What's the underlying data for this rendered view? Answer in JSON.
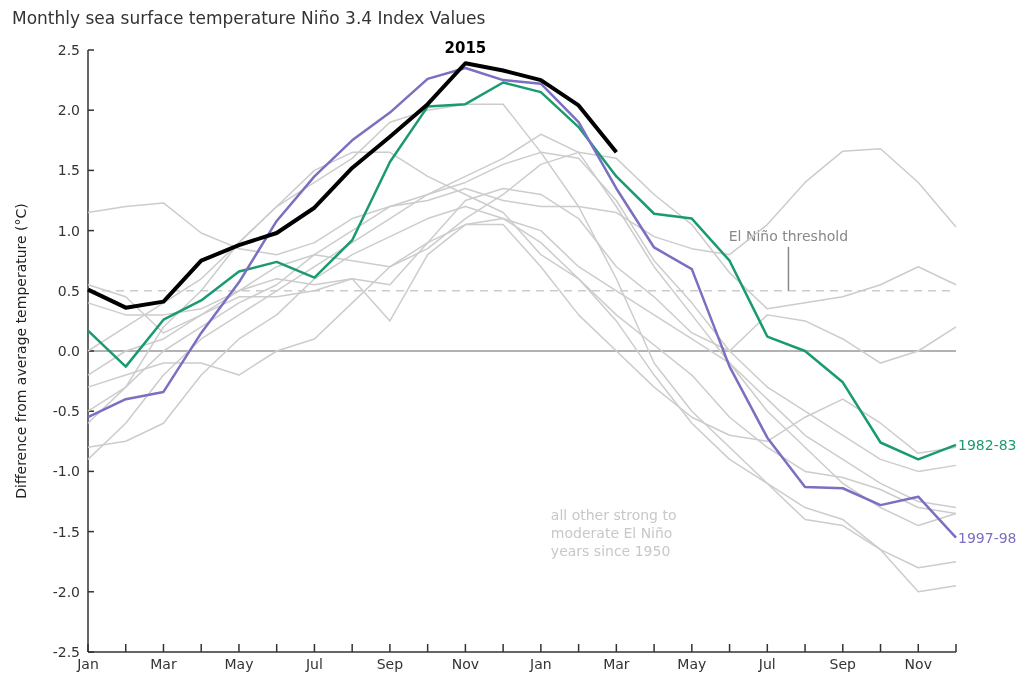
{
  "chart_data": {
    "type": "line",
    "title": "Monthly sea surface temperature Niño 3.4 Index Values",
    "ylabel": "Difference from average temperature (°C)",
    "categories": [
      "Jan",
      null,
      "Mar",
      null,
      "May",
      null,
      "Jul",
      null,
      "Sep",
      null,
      "Nov",
      null,
      "Jan",
      null,
      "Mar",
      null,
      "May",
      null,
      "Jul",
      null,
      "Sep",
      null,
      "Nov",
      null
    ],
    "ylim": [
      -2.5,
      2.5
    ],
    "yticks": [
      {
        "value": -2.5,
        "label": "-2.5"
      },
      {
        "value": -2,
        "label": "-2.0"
      },
      {
        "value": -1.5,
        "label": "-1.5"
      },
      {
        "value": -1,
        "label": "-1.0"
      },
      {
        "value": -0.5,
        "label": "-0.5"
      },
      {
        "value": 0,
        "label": "0.0"
      },
      {
        "value": 0.5,
        "label": "0.5"
      },
      {
        "value": 1,
        "label": "1.0"
      },
      {
        "value": 1.5,
        "label": "1.5"
      },
      {
        "value": 2,
        "label": "2.0"
      },
      {
        "value": 2.5,
        "label": "2.5"
      }
    ],
    "series": [
      {
        "color": "#cccccc",
        "values": [
          1.15,
          1.2,
          1.23,
          0.98,
          0.85,
          0.8,
          0.9,
          1.1,
          1.2,
          1.25,
          1.35,
          1.25,
          1.2,
          1.2,
          1.15,
          0.95,
          0.85,
          0.8,
          1.05,
          1.4,
          1.66,
          1.68,
          1.4,
          1.03
        ]
      },
      {
        "color": "#cccccc",
        "values": [
          -0.6,
          -0.3,
          0.2,
          0.5,
          0.9,
          1.2,
          1.4,
          1.6,
          1.9,
          2.0,
          2.05,
          2.05,
          1.65,
          1.2,
          0.6,
          -0.1,
          -0.5,
          -0.8,
          -1.1,
          -1.4,
          -1.45,
          -1.65,
          -2.0,
          -1.95
        ]
      },
      {
        "color": "#cccccc",
        "values": [
          0.0,
          0.2,
          0.4,
          0.6,
          0.9,
          1.2,
          1.5,
          1.65,
          1.65,
          1.45,
          1.3,
          1.15,
          0.8,
          0.6,
          0.25,
          -0.2,
          -0.6,
          -0.9,
          -1.1,
          -1.3,
          -1.4,
          -1.65,
          -1.8,
          -1.75
        ]
      },
      {
        "color": "#cccccc",
        "values": [
          -0.9,
          -0.6,
          -0.2,
          0.1,
          0.3,
          0.5,
          0.7,
          0.9,
          1.1,
          1.3,
          1.45,
          1.6,
          1.8,
          1.65,
          1.2,
          0.7,
          0.3,
          -0.1,
          -0.5,
          -0.8,
          -1.1,
          -1.3,
          -1.45,
          -1.35
        ]
      },
      {
        "color": "#cccccc",
        "values": [
          -0.5,
          -0.3,
          0.0,
          0.2,
          0.4,
          0.55,
          0.8,
          1.0,
          1.2,
          1.3,
          1.4,
          1.55,
          1.65,
          1.6,
          1.25,
          0.75,
          0.4,
          0.0,
          -0.3,
          -0.5,
          -0.7,
          -0.9,
          -1.0,
          -0.95
        ]
      },
      {
        "color": "#cccccc",
        "values": [
          0.4,
          0.3,
          0.3,
          0.35,
          0.5,
          0.7,
          0.8,
          0.75,
          0.7,
          0.85,
          1.1,
          1.3,
          1.55,
          1.65,
          1.6,
          1.3,
          1.05,
          0.65,
          0.35,
          0.4,
          0.45,
          0.55,
          0.7,
          0.55
        ]
      },
      {
        "color": "#cccccc",
        "values": [
          -0.8,
          -0.75,
          -0.6,
          -0.2,
          0.1,
          0.3,
          0.6,
          0.8,
          0.95,
          1.1,
          1.2,
          1.1,
          1.0,
          0.7,
          0.5,
          0.3,
          0.1,
          -0.1,
          -0.4,
          -0.7,
          -0.9,
          -1.1,
          -1.25,
          -1.3
        ]
      },
      {
        "color": "#cccccc",
        "values": [
          -0.3,
          -0.2,
          -0.1,
          -0.1,
          -0.2,
          0.0,
          0.1,
          0.4,
          0.7,
          0.9,
          1.05,
          1.1,
          0.9,
          0.6,
          0.3,
          0.05,
          -0.2,
          -0.55,
          -0.8,
          -1.0,
          -1.05,
          -1.15,
          -1.3,
          -1.35
        ]
      },
      {
        "color": "#cccccc",
        "values": [
          -0.2,
          0.0,
          0.1,
          0.3,
          0.5,
          0.6,
          0.55,
          0.6,
          0.25,
          0.8,
          1.05,
          1.05,
          0.7,
          0.3,
          0.0,
          -0.3,
          -0.55,
          -0.7,
          -0.75,
          -0.55,
          -0.4,
          -0.6,
          -0.85,
          -0.8
        ]
      },
      {
        "color": "#cccccc",
        "values": [
          0.55,
          0.45,
          0.15,
          0.3,
          0.45,
          0.45,
          0.5,
          0.6,
          0.55,
          0.9,
          1.25,
          1.35,
          1.3,
          1.1,
          0.7,
          0.45,
          0.15,
          0.0,
          0.3,
          0.25,
          0.1,
          -0.1,
          0.0,
          0.2
        ]
      },
      {
        "name": "1982-83",
        "color": "#1a9a72",
        "values": [
          0.17,
          -0.13,
          0.26,
          0.42,
          0.66,
          0.74,
          0.61,
          0.92,
          1.57,
          2.03,
          2.05,
          2.23,
          2.15,
          1.86,
          1.45,
          1.14,
          1.1,
          0.75,
          0.12,
          0.0,
          -0.26,
          -0.76,
          -0.9,
          -0.78
        ]
      },
      {
        "name": "1997-98",
        "color": "#7a6fc0",
        "values": [
          -0.55,
          -0.4,
          -0.34,
          0.15,
          0.57,
          1.08,
          1.45,
          1.75,
          1.98,
          2.26,
          2.35,
          2.25,
          2.22,
          1.9,
          1.35,
          0.86,
          0.68,
          -0.13,
          -0.72,
          -1.13,
          -1.14,
          -1.28,
          -1.21,
          -1.55
        ]
      },
      {
        "name": "2015",
        "color": "#000000",
        "values": [
          0.51,
          0.36,
          0.41,
          0.75,
          0.88,
          0.98,
          1.19,
          1.52,
          1.78,
          2.05,
          2.39,
          2.33,
          2.25,
          2.04,
          1.65,
          null,
          null,
          null,
          null,
          null,
          null,
          null,
          null,
          null
        ]
      }
    ],
    "ref_lines": [
      {
        "axis": "y",
        "value": 0.5,
        "label": "El Niño threshold",
        "color": "#cccccc",
        "line_style": "dashed"
      },
      {
        "axis": "y",
        "value": 0,
        "label": null,
        "color": "#999999",
        "line_style": "solid"
      }
    ],
    "annotations": [
      "all other strong to moderate El Niño years since 1950"
    ],
    "grid": false,
    "marker": "none",
    "line_style": "solid"
  }
}
